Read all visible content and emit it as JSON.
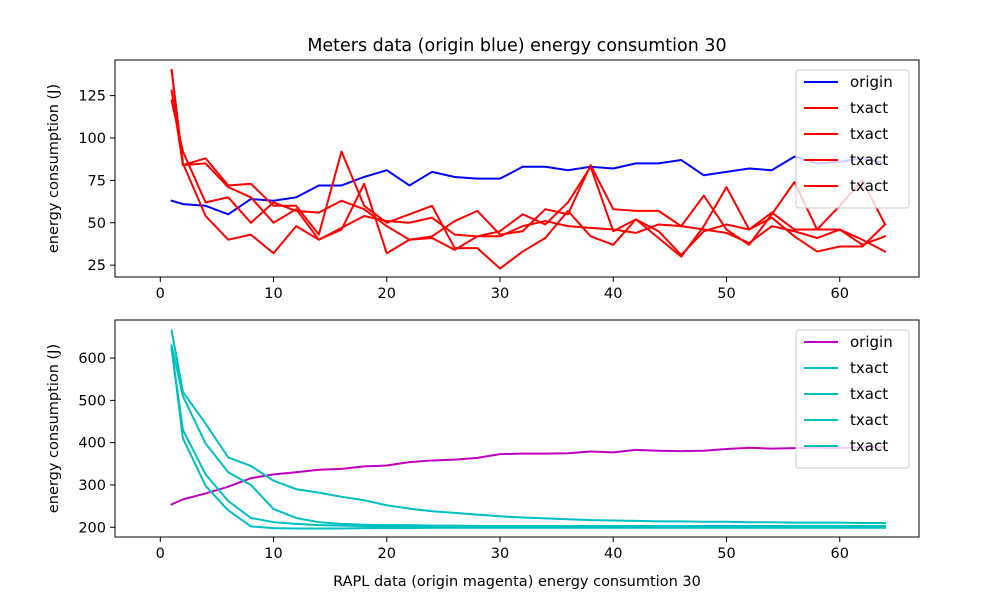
{
  "chart_data": [
    {
      "type": "line",
      "title": "Meters data (origin blue) energy consumtion 30",
      "xlabel": "",
      "ylabel": "energy consumption (J)",
      "xlim": [
        -4,
        67
      ],
      "ylim": [
        18,
        146
      ],
      "xticks": [
        0,
        10,
        20,
        30,
        40,
        50,
        60
      ],
      "yticks": [
        25,
        50,
        75,
        100,
        125
      ],
      "legend": "top-right",
      "series": [
        {
          "name": "origin",
          "color": "#0000ff",
          "x": [
            1,
            2,
            4,
            6,
            8,
            10,
            12,
            14,
            16,
            18,
            20,
            22,
            24,
            26,
            28,
            30,
            32,
            34,
            36,
            38,
            40,
            42,
            44,
            46,
            48,
            50,
            52,
            54,
            56,
            58,
            60,
            62,
            64
          ],
          "y": [
            63,
            61,
            60,
            55,
            64,
            63,
            65,
            72,
            72,
            77,
            81,
            72,
            80,
            77,
            76,
            76,
            83,
            83,
            81,
            83,
            82,
            85,
            85,
            87,
            78,
            80,
            82,
            81,
            89,
            85,
            86,
            88,
            85
          ]
        },
        {
          "name": "txact",
          "color": "#ff0000",
          "x": [
            1,
            2,
            4,
            6,
            8,
            10,
            12,
            14,
            16,
            18,
            20,
            22,
            24,
            26,
            28,
            30,
            32,
            34,
            36,
            38,
            40,
            42,
            44,
            46,
            48,
            50,
            52,
            54,
            56,
            58,
            60,
            62,
            64
          ],
          "y": [
            140,
            85,
            54,
            40,
            43,
            32,
            48,
            40,
            46,
            73,
            32,
            40,
            42,
            51,
            57,
            43,
            45,
            58,
            55,
            84,
            58,
            57,
            57,
            48,
            66,
            46,
            37,
            55,
            74,
            46,
            60,
            75,
            49
          ]
        },
        {
          "name": "txact",
          "color": "#ff0000",
          "x": [
            1,
            2,
            4,
            6,
            8,
            10,
            12,
            14,
            16,
            18,
            20,
            22,
            24,
            26,
            28,
            30,
            32,
            34,
            36,
            38,
            40,
            42,
            44,
            46,
            48,
            50,
            52,
            54,
            56,
            58,
            60,
            62,
            64
          ],
          "y": [
            128,
            84,
            88,
            72,
            73,
            60,
            60,
            43,
            92,
            60,
            50,
            55,
            60,
            35,
            35,
            23,
            33,
            41,
            57,
            42,
            37,
            52,
            41,
            30,
            48,
            71,
            46,
            53,
            42,
            33,
            36,
            36,
            49
          ]
        },
        {
          "name": "txact",
          "color": "#ff0000",
          "x": [
            1,
            2,
            4,
            6,
            8,
            10,
            12,
            14,
            16,
            18,
            20,
            22,
            24,
            26,
            28,
            30,
            32,
            34,
            36,
            38,
            40,
            42,
            44,
            46,
            48,
            50,
            52,
            54,
            56,
            58,
            60,
            62,
            64
          ],
          "y": [
            122,
            92,
            62,
            65,
            50,
            62,
            57,
            56,
            63,
            58,
            48,
            40,
            41,
            34,
            42,
            45,
            55,
            49,
            62,
            83,
            45,
            52,
            45,
            31,
            45,
            49,
            46,
            56,
            46,
            46,
            46,
            37,
            42
          ]
        },
        {
          "name": "txact",
          "color": "#ff0000",
          "x": [
            1,
            2,
            4,
            6,
            8,
            10,
            12,
            14,
            16,
            18,
            20,
            22,
            24,
            26,
            28,
            30,
            32,
            34,
            36,
            38,
            40,
            42,
            44,
            46,
            48,
            50,
            52,
            54,
            56,
            58,
            60,
            62,
            64
          ],
          "y": [
            140,
            84,
            85,
            71,
            65,
            50,
            58,
            40,
            47,
            54,
            51,
            50,
            53,
            43,
            42,
            42,
            48,
            51,
            48,
            47,
            46,
            44,
            49,
            48,
            46,
            44,
            38,
            48,
            45,
            41,
            46,
            40,
            33
          ]
        }
      ]
    },
    {
      "type": "line",
      "title": "",
      "xlabel": "RAPL data (origin magenta) energy consumtion 30",
      "ylabel": "energy consumption (J)",
      "xlim": [
        -4,
        67
      ],
      "ylim": [
        177,
        690
      ],
      "xticks": [
        0,
        10,
        20,
        30,
        40,
        50,
        60
      ],
      "yticks": [
        200,
        300,
        400,
        500,
        600
      ],
      "legend": "top-right",
      "series": [
        {
          "name": "origin",
          "color": "#bf00bf",
          "x": [
            1,
            2,
            4,
            6,
            8,
            10,
            12,
            14,
            16,
            18,
            20,
            22,
            24,
            26,
            28,
            30,
            32,
            34,
            36,
            38,
            40,
            42,
            44,
            46,
            48,
            50,
            52,
            54,
            56,
            58,
            60,
            62,
            64
          ],
          "y": [
            254,
            266,
            280,
            296,
            316,
            325,
            330,
            336,
            338,
            344,
            346,
            354,
            358,
            360,
            364,
            373,
            374,
            374,
            375,
            379,
            377,
            383,
            381,
            380,
            381,
            385,
            388,
            386,
            387,
            388,
            387,
            390,
            389
          ]
        },
        {
          "name": "txact",
          "color": "#00bfbf",
          "x": [
            1,
            2,
            4,
            6,
            8,
            10,
            12,
            14,
            16,
            18,
            20,
            22,
            24,
            26,
            28,
            30,
            32,
            34,
            36,
            38,
            40,
            42,
            44,
            46,
            48,
            50,
            52,
            54,
            56,
            58,
            60,
            62,
            64
          ],
          "y": [
            665,
            520,
            445,
            365,
            345,
            310,
            290,
            282,
            272,
            264,
            252,
            244,
            238,
            234,
            230,
            226,
            223,
            221,
            219,
            217,
            216,
            215,
            214,
            214,
            213,
            213,
            212,
            212,
            211,
            211,
            211,
            210,
            210
          ]
        },
        {
          "name": "txact",
          "color": "#00bfbf",
          "x": [
            1,
            2,
            4,
            6,
            8,
            10,
            12,
            14,
            16,
            18,
            20,
            22,
            24,
            26,
            28,
            30,
            32,
            34,
            36,
            38,
            40,
            42,
            44,
            46,
            48,
            50,
            52,
            54,
            56,
            58,
            60,
            62,
            64
          ],
          "y": [
            630,
            510,
            398,
            330,
            300,
            243,
            222,
            212,
            208,
            206,
            205,
            205,
            204,
            204,
            203,
            203,
            203,
            203,
            203,
            203,
            203,
            203,
            203,
            203,
            203,
            203,
            203,
            203,
            203,
            203,
            203,
            203,
            203
          ]
        },
        {
          "name": "txact",
          "color": "#00bfbf",
          "x": [
            1,
            2,
            4,
            6,
            8,
            10,
            12,
            14,
            16,
            18,
            20,
            22,
            24,
            26,
            28,
            30,
            32,
            34,
            36,
            38,
            40,
            42,
            44,
            46,
            48,
            50,
            52,
            54,
            56,
            58,
            60,
            62,
            64
          ],
          "y": [
            620,
            430,
            325,
            262,
            222,
            212,
            208,
            205,
            204,
            203,
            202,
            202,
            202,
            201,
            201,
            201,
            201,
            201,
            201,
            201,
            201,
            201,
            201,
            201,
            201,
            201,
            201,
            201,
            201,
            201,
            201,
            201,
            201
          ]
        },
        {
          "name": "txact",
          "color": "#00bfbf",
          "x": [
            1,
            2,
            4,
            6,
            8,
            10,
            12,
            14,
            16,
            18,
            20,
            22,
            24,
            26,
            28,
            30,
            32,
            34,
            36,
            38,
            40,
            42,
            44,
            46,
            48,
            50,
            52,
            54,
            56,
            58,
            60,
            62,
            64
          ],
          "y": [
            625,
            410,
            298,
            240,
            202,
            198,
            197,
            197,
            197,
            198,
            198,
            198,
            199,
            199,
            199,
            199,
            199,
            199,
            199,
            199,
            199,
            199,
            199,
            199,
            199,
            199,
            199,
            199,
            199,
            199,
            199,
            199,
            199
          ]
        }
      ]
    }
  ]
}
